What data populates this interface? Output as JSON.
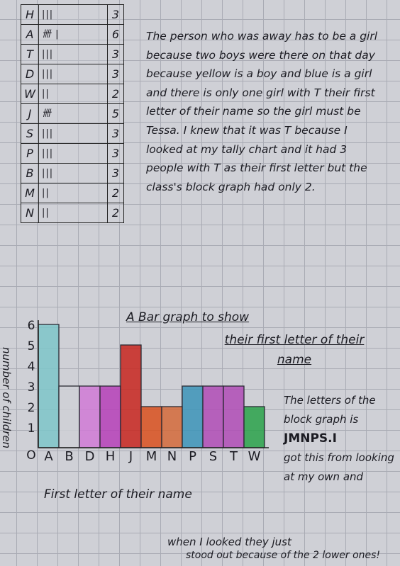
{
  "tally": {
    "rows": [
      {
        "letter": "H",
        "tally": "|||",
        "count": "3"
      },
      {
        "letter": "A",
        "tally": "卌 |",
        "count": "6"
      },
      {
        "letter": "T",
        "tally": "|||",
        "count": "3"
      },
      {
        "letter": "D",
        "tally": "|||",
        "count": "3"
      },
      {
        "letter": "W",
        "tally": "||",
        "count": "2"
      },
      {
        "letter": "J",
        "tally": "卌",
        "count": "5"
      },
      {
        "letter": "S",
        "tally": "|||",
        "count": "3"
      },
      {
        "letter": "P",
        "tally": "|||",
        "count": "3"
      },
      {
        "letter": "B",
        "tally": "|||",
        "count": "3"
      },
      {
        "letter": "M",
        "tally": "||",
        "count": "2"
      },
      {
        "letter": "N",
        "tally": "||",
        "count": "2"
      }
    ]
  },
  "explanation": "The person who was away has to be a girl because two boys were there on that day because yellow is a boy and blue is a girl and there is only one girl with T their first letter of their name so the girl must be Tessa. I knew that it was T because I looked at my tally chart and it had 3 people with T as their first letter but the class's block graph had only 2.",
  "conclusion": {
    "line1": "The letters of the block graph is",
    "line2": "JMNPS.I",
    "line3": "got this from looking at my own and"
  },
  "bottom_note": {
    "line1": "when I looked   they just",
    "line2": "stood out because of the 2 lower ones!"
  },
  "chart_data": {
    "type": "bar",
    "title": "A Bar graph to show their first letter of their name",
    "title_line1": "A Bar graph to show",
    "title_line2": "their first letter of their name",
    "xlabel": "First letter of their name",
    "ylabel": "number of children",
    "origin_label": "O",
    "categories": [
      "A",
      "B",
      "D",
      "H",
      "J",
      "M",
      "N",
      "P",
      "S",
      "T",
      "W"
    ],
    "values": [
      6,
      3,
      3,
      3,
      5,
      2,
      2,
      3,
      3,
      3,
      2
    ],
    "colors": [
      "#7ec6c9",
      "#cfd0d6",
      "#d07ad6",
      "#b640b8",
      "#c8261f",
      "#d9501d",
      "#d46a3a",
      "#3c94b8",
      "#b04cb6",
      "#b04cb6",
      "#2aa24a"
    ],
    "y_ticks": [
      1,
      2,
      3,
      4,
      5,
      6
    ],
    "ylim": [
      0,
      6
    ]
  }
}
